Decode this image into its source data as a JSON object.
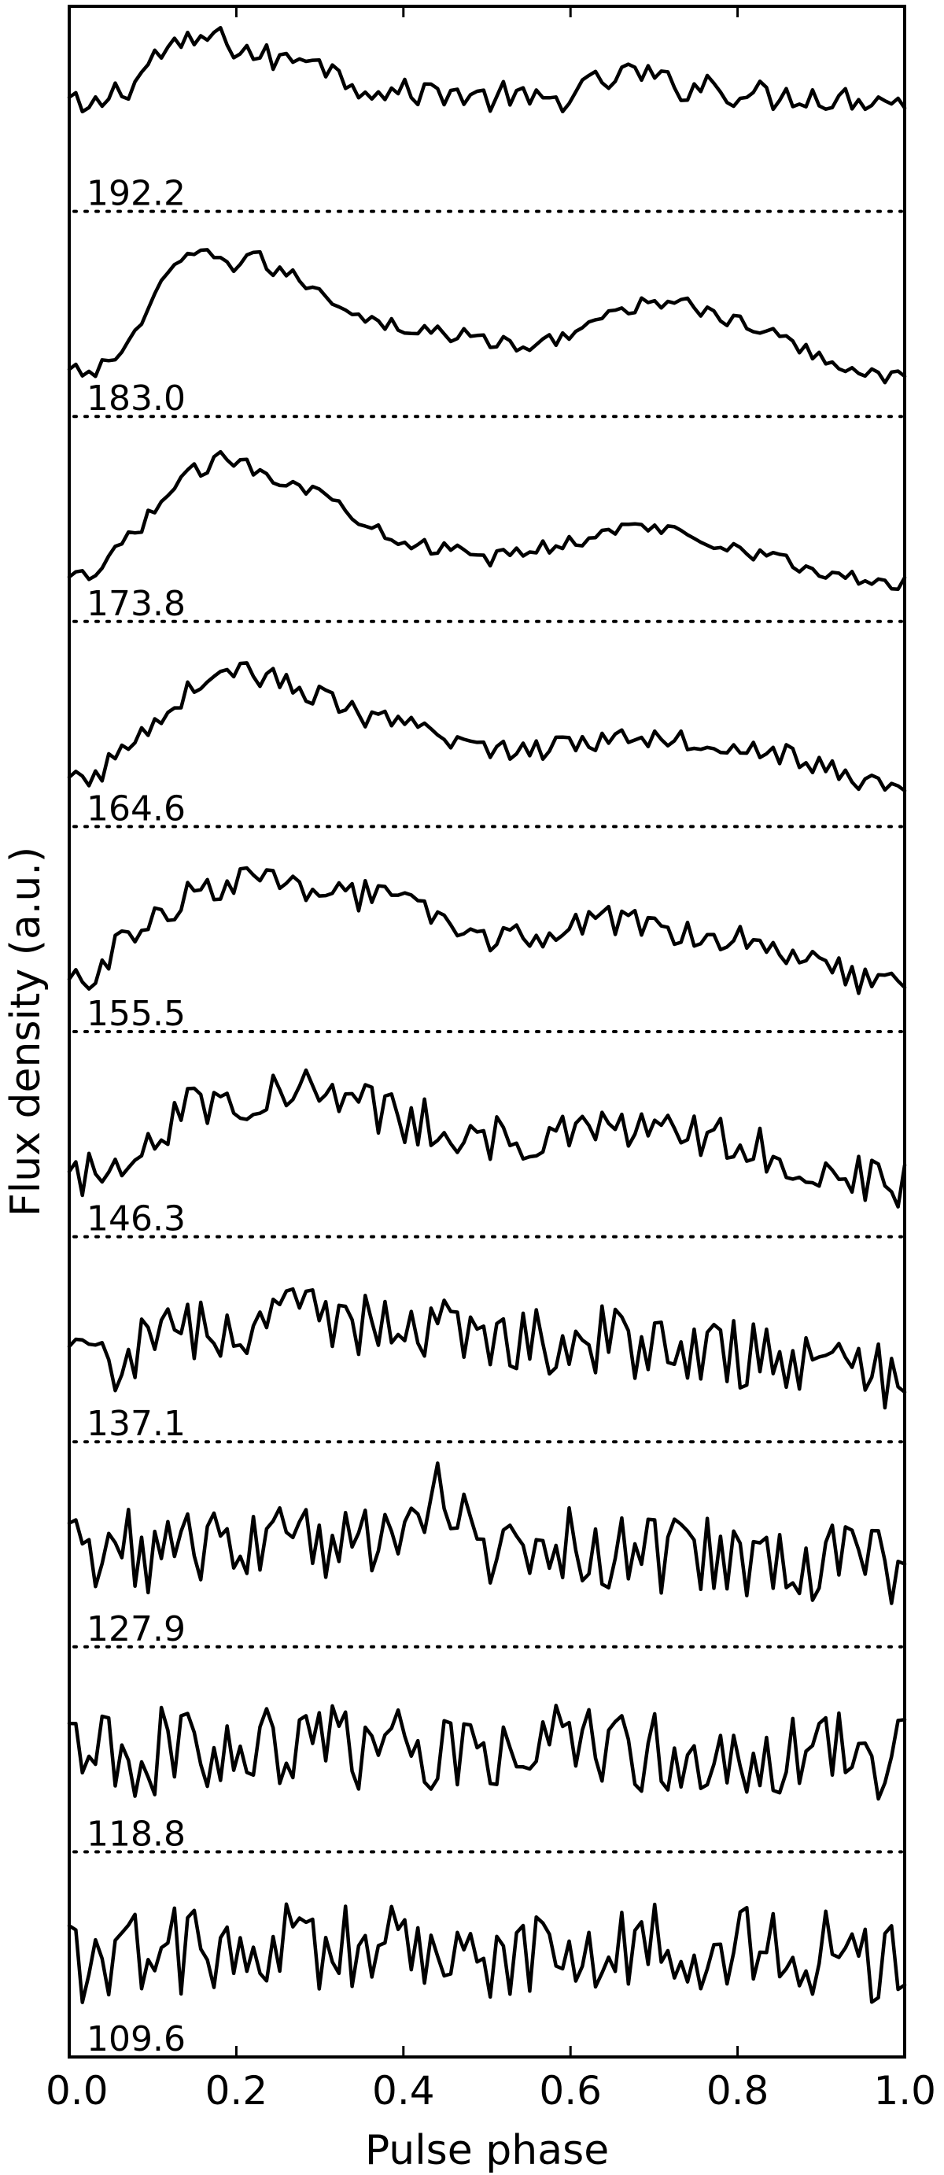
{
  "chart_data": {
    "type": "line",
    "title": "",
    "xlabel": "Pulse phase",
    "ylabel": "Flux density (a.u.)",
    "xlim": [
      0.0,
      1.0
    ],
    "x_ticks": [
      "0.0",
      "0.2",
      "0.4",
      "0.6",
      "0.8",
      "1.0"
    ],
    "grid": false,
    "legend": "none",
    "points_per_profile": 128,
    "series": [
      {
        "name": "192.2",
        "label": "192.2",
        "profile": [
          [
            0.0,
            0.55
          ],
          [
            0.02,
            0.45
          ],
          [
            0.05,
            0.6
          ],
          [
            0.08,
            0.68
          ],
          [
            0.1,
            0.85
          ],
          [
            0.12,
            0.9
          ],
          [
            0.14,
            0.92
          ],
          [
            0.16,
            0.98
          ],
          [
            0.17,
            1.0
          ],
          [
            0.2,
            0.92
          ],
          [
            0.23,
            0.85
          ],
          [
            0.26,
            0.82
          ],
          [
            0.29,
            0.9
          ],
          [
            0.32,
            0.72
          ],
          [
            0.35,
            0.66
          ],
          [
            0.4,
            0.6
          ],
          [
            0.45,
            0.62
          ],
          [
            0.5,
            0.56
          ],
          [
            0.53,
            0.6
          ],
          [
            0.55,
            0.53
          ],
          [
            0.58,
            0.55
          ],
          [
            0.61,
            0.62
          ],
          [
            0.64,
            0.68
          ],
          [
            0.66,
            0.72
          ],
          [
            0.68,
            0.75
          ],
          [
            0.7,
            0.7
          ],
          [
            0.73,
            0.63
          ],
          [
            0.76,
            0.68
          ],
          [
            0.79,
            0.61
          ],
          [
            0.82,
            0.6
          ],
          [
            0.85,
            0.57
          ],
          [
            0.88,
            0.6
          ],
          [
            0.92,
            0.56
          ],
          [
            0.95,
            0.58
          ],
          [
            1.0,
            0.55
          ]
        ],
        "noise": 0.045
      },
      {
        "name": "183.0",
        "label": "183.0",
        "profile": [
          [
            0.0,
            0.1
          ],
          [
            0.03,
            0.1
          ],
          [
            0.06,
            0.22
          ],
          [
            0.08,
            0.4
          ],
          [
            0.1,
            0.55
          ],
          [
            0.12,
            0.8
          ],
          [
            0.15,
            0.88
          ],
          [
            0.17,
            0.92
          ],
          [
            0.2,
            0.82
          ],
          [
            0.22,
            0.9
          ],
          [
            0.25,
            0.78
          ],
          [
            0.28,
            0.72
          ],
          [
            0.31,
            0.62
          ],
          [
            0.35,
            0.48
          ],
          [
            0.4,
            0.4
          ],
          [
            0.45,
            0.36
          ],
          [
            0.5,
            0.32
          ],
          [
            0.55,
            0.25
          ],
          [
            0.6,
            0.38
          ],
          [
            0.65,
            0.48
          ],
          [
            0.69,
            0.56
          ],
          [
            0.73,
            0.62
          ],
          [
            0.76,
            0.5
          ],
          [
            0.8,
            0.44
          ],
          [
            0.85,
            0.33
          ],
          [
            0.9,
            0.2
          ],
          [
            0.95,
            0.1
          ],
          [
            1.0,
            0.06
          ]
        ],
        "noise": 0.025
      },
      {
        "name": "173.8",
        "label": "173.8",
        "profile": [
          [
            0.0,
            0.08
          ],
          [
            0.03,
            0.1
          ],
          [
            0.06,
            0.3
          ],
          [
            0.09,
            0.48
          ],
          [
            0.12,
            0.68
          ],
          [
            0.15,
            0.82
          ],
          [
            0.18,
            0.9
          ],
          [
            0.2,
            0.9
          ],
          [
            0.22,
            0.85
          ],
          [
            0.25,
            0.78
          ],
          [
            0.28,
            0.72
          ],
          [
            0.31,
            0.64
          ],
          [
            0.35,
            0.5
          ],
          [
            0.4,
            0.35
          ],
          [
            0.45,
            0.28
          ],
          [
            0.5,
            0.22
          ],
          [
            0.55,
            0.28
          ],
          [
            0.6,
            0.34
          ],
          [
            0.65,
            0.42
          ],
          [
            0.7,
            0.44
          ],
          [
            0.74,
            0.4
          ],
          [
            0.8,
            0.3
          ],
          [
            0.85,
            0.22
          ],
          [
            0.9,
            0.12
          ],
          [
            0.95,
            0.08
          ],
          [
            1.0,
            0.05
          ]
        ],
        "noise": 0.025
      },
      {
        "name": "164.6",
        "label": "164.6",
        "profile": [
          [
            0.0,
            0.1
          ],
          [
            0.03,
            0.12
          ],
          [
            0.06,
            0.3
          ],
          [
            0.09,
            0.45
          ],
          [
            0.12,
            0.62
          ],
          [
            0.15,
            0.75
          ],
          [
            0.18,
            0.85
          ],
          [
            0.2,
            0.88
          ],
          [
            0.23,
            0.82
          ],
          [
            0.26,
            0.78
          ],
          [
            0.3,
            0.68
          ],
          [
            0.35,
            0.55
          ],
          [
            0.4,
            0.48
          ],
          [
            0.45,
            0.4
          ],
          [
            0.5,
            0.34
          ],
          [
            0.55,
            0.3
          ],
          [
            0.6,
            0.38
          ],
          [
            0.65,
            0.4
          ],
          [
            0.7,
            0.42
          ],
          [
            0.75,
            0.38
          ],
          [
            0.8,
            0.35
          ],
          [
            0.85,
            0.3
          ],
          [
            0.9,
            0.2
          ],
          [
            0.95,
            0.1
          ],
          [
            1.0,
            0.08
          ]
        ],
        "noise": 0.035
      },
      {
        "name": "155.5",
        "label": "155.5",
        "profile": [
          [
            0.0,
            0.1
          ],
          [
            0.03,
            0.2
          ],
          [
            0.06,
            0.38
          ],
          [
            0.1,
            0.55
          ],
          [
            0.13,
            0.68
          ],
          [
            0.16,
            0.78
          ],
          [
            0.2,
            0.82
          ],
          [
            0.25,
            0.8
          ],
          [
            0.3,
            0.8
          ],
          [
            0.35,
            0.72
          ],
          [
            0.4,
            0.68
          ],
          [
            0.45,
            0.5
          ],
          [
            0.5,
            0.45
          ],
          [
            0.55,
            0.42
          ],
          [
            0.6,
            0.5
          ],
          [
            0.65,
            0.55
          ],
          [
            0.7,
            0.52
          ],
          [
            0.75,
            0.48
          ],
          [
            0.8,
            0.45
          ],
          [
            0.85,
            0.38
          ],
          [
            0.9,
            0.3
          ],
          [
            0.95,
            0.15
          ],
          [
            1.0,
            0.08
          ]
        ],
        "noise": 0.05
      },
      {
        "name": "146.3",
        "label": "146.3",
        "profile": [
          [
            0.0,
            0.15
          ],
          [
            0.05,
            0.3
          ],
          [
            0.1,
            0.5
          ],
          [
            0.15,
            0.7
          ],
          [
            0.2,
            0.75
          ],
          [
            0.25,
            0.78
          ],
          [
            0.3,
            0.78
          ],
          [
            0.35,
            0.7
          ],
          [
            0.4,
            0.6
          ],
          [
            0.45,
            0.55
          ],
          [
            0.5,
            0.48
          ],
          [
            0.55,
            0.42
          ],
          [
            0.6,
            0.48
          ],
          [
            0.65,
            0.52
          ],
          [
            0.7,
            0.5
          ],
          [
            0.75,
            0.48
          ],
          [
            0.8,
            0.45
          ],
          [
            0.85,
            0.35
          ],
          [
            0.9,
            0.28
          ],
          [
            0.95,
            0.2
          ],
          [
            1.0,
            0.15
          ]
        ],
        "noise": 0.075
      },
      {
        "name": "137.1",
        "label": "137.1",
        "profile": [
          [
            0.0,
            0.3
          ],
          [
            0.05,
            0.35
          ],
          [
            0.1,
            0.45
          ],
          [
            0.15,
            0.55
          ],
          [
            0.2,
            0.6
          ],
          [
            0.25,
            0.62
          ],
          [
            0.3,
            0.62
          ],
          [
            0.35,
            0.62
          ],
          [
            0.4,
            0.62
          ],
          [
            0.45,
            0.6
          ],
          [
            0.5,
            0.55
          ],
          [
            0.55,
            0.5
          ],
          [
            0.6,
            0.5
          ],
          [
            0.65,
            0.48
          ],
          [
            0.7,
            0.45
          ],
          [
            0.75,
            0.42
          ],
          [
            0.8,
            0.38
          ],
          [
            0.85,
            0.35
          ],
          [
            0.9,
            0.3
          ],
          [
            0.95,
            0.28
          ],
          [
            1.0,
            0.26
          ]
        ],
        "noise": 0.11
      },
      {
        "name": "127.9",
        "label": "127.9",
        "profile": [
          [
            0.0,
            0.45
          ],
          [
            0.1,
            0.45
          ],
          [
            0.2,
            0.5
          ],
          [
            0.3,
            0.52
          ],
          [
            0.38,
            0.58
          ],
          [
            0.42,
            0.78
          ],
          [
            0.44,
            0.95
          ],
          [
            0.47,
            0.62
          ],
          [
            0.5,
            0.5
          ],
          [
            0.6,
            0.48
          ],
          [
            0.7,
            0.45
          ],
          [
            0.8,
            0.4
          ],
          [
            0.9,
            0.35
          ],
          [
            1.0,
            0.32
          ]
        ],
        "noise": 0.13
      },
      {
        "name": "118.8",
        "label": "118.8",
        "profile": [
          [
            0.0,
            0.45
          ],
          [
            0.1,
            0.48
          ],
          [
            0.2,
            0.52
          ],
          [
            0.3,
            0.52
          ],
          [
            0.4,
            0.5
          ],
          [
            0.5,
            0.55
          ],
          [
            0.55,
            0.6
          ],
          [
            0.6,
            0.5
          ],
          [
            0.7,
            0.48
          ],
          [
            0.8,
            0.5
          ],
          [
            0.9,
            0.48
          ],
          [
            1.0,
            0.45
          ]
        ],
        "noise": 0.14
      },
      {
        "name": "109.6",
        "label": "109.6",
        "profile": [
          [
            0.0,
            0.45
          ],
          [
            0.1,
            0.5
          ],
          [
            0.2,
            0.52
          ],
          [
            0.3,
            0.54
          ],
          [
            0.4,
            0.52
          ],
          [
            0.5,
            0.5
          ],
          [
            0.6,
            0.52
          ],
          [
            0.7,
            0.55
          ],
          [
            0.8,
            0.52
          ],
          [
            0.9,
            0.5
          ],
          [
            1.0,
            0.45
          ]
        ],
        "noise": 0.14
      }
    ]
  }
}
